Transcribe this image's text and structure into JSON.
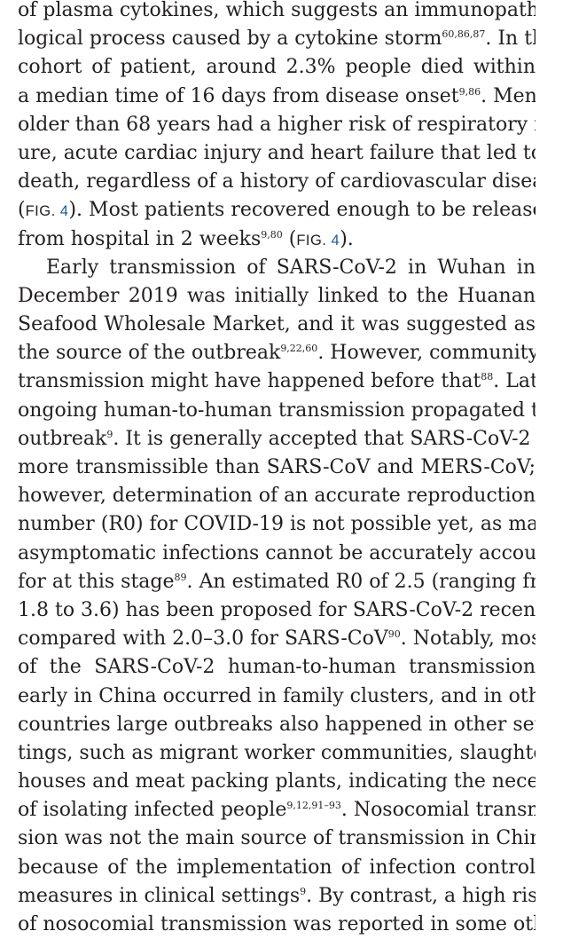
{
  "lines": [
    {
      "segments": [
        {
          "t": "text",
          "v": "of plasma cytokines, which suggests an immunopatho-"
        }
      ]
    },
    {
      "segments": [
        {
          "t": "text",
          "v": "logical process caused by a cytokine storm"
        },
        {
          "t": "sup",
          "v": "60,86,87"
        },
        {
          "t": "text",
          "v": ". In this"
        }
      ]
    },
    {
      "segments": [
        {
          "t": "text",
          "v": "cohort of patient, around 2.3% people died within"
        }
      ]
    },
    {
      "segments": [
        {
          "t": "text",
          "v": "a median time of 16 days from disease onset"
        },
        {
          "t": "sup",
          "v": "9,86"
        },
        {
          "t": "text",
          "v": ". Men"
        }
      ]
    },
    {
      "segments": [
        {
          "t": "text",
          "v": "older than 68 years had a higher risk of respiratory fail-"
        }
      ]
    },
    {
      "segments": [
        {
          "t": "text",
          "v": "ure, acute cardiac injury and heart failure that led to"
        }
      ]
    },
    {
      "segments": [
        {
          "t": "text",
          "v": "death, regardless of a history of cardiovascular disease"
        },
        {
          "t": "sup",
          "v": "86"
        }
      ]
    },
    {
      "segments": [
        {
          "t": "text",
          "v": "("
        },
        {
          "t": "fig",
          "v": "FIG.",
          "n": "4"
        },
        {
          "t": "text",
          "v": "). Most patients recovered enough to be released"
        }
      ]
    },
    {
      "last": true,
      "segments": [
        {
          "t": "text",
          "v": "from hospital in 2 weeks"
        },
        {
          "t": "sup",
          "v": "9,80"
        },
        {
          "t": "text",
          "v": " ("
        },
        {
          "t": "fig",
          "v": "FIG.",
          "n": "4"
        },
        {
          "t": "text",
          "v": ")."
        }
      ]
    },
    {
      "indent": true,
      "segments": [
        {
          "t": "text",
          "v": "Early transmission of SARS-CoV-2 in Wuhan in"
        }
      ]
    },
    {
      "segments": [
        {
          "t": "text",
          "v": "December 2019 was initially linked to the Huanan"
        }
      ]
    },
    {
      "segments": [
        {
          "t": "text",
          "v": "Seafood Wholesale Market, and it was suggested as"
        }
      ]
    },
    {
      "segments": [
        {
          "t": "text",
          "v": "the source of the outbreak"
        },
        {
          "t": "sup",
          "v": "9,22,60"
        },
        {
          "t": "text",
          "v": ". However, community"
        }
      ]
    },
    {
      "segments": [
        {
          "t": "text",
          "v": "transmission might have happened before that"
        },
        {
          "t": "sup",
          "v": "88"
        },
        {
          "t": "text",
          "v": ". Later,"
        }
      ]
    },
    {
      "segments": [
        {
          "t": "text",
          "v": "ongoing human-to-human transmission propagated the"
        }
      ]
    },
    {
      "segments": [
        {
          "t": "text",
          "v": "outbreak"
        },
        {
          "t": "sup",
          "v": "9"
        },
        {
          "t": "text",
          "v": ". It is generally accepted that SARS-CoV-2 is"
        }
      ]
    },
    {
      "segments": [
        {
          "t": "text",
          "v": "more transmissible than SARS-CoV and MERS-CoV;"
        }
      ]
    },
    {
      "segments": [
        {
          "t": "text",
          "v": "however, determination of an accurate reproduction"
        }
      ]
    },
    {
      "segments": [
        {
          "t": "text",
          "v": "number (R0) for COVID-19 is not possible yet, as many"
        }
      ]
    },
    {
      "segments": [
        {
          "t": "text",
          "v": "asymptomatic infections cannot be accurately accounted"
        }
      ]
    },
    {
      "segments": [
        {
          "t": "text",
          "v": "for at this stage"
        },
        {
          "t": "sup",
          "v": "89"
        },
        {
          "t": "text",
          "v": ". An estimated R0 of 2.5 (ranging from"
        }
      ]
    },
    {
      "segments": [
        {
          "t": "text",
          "v": "1.8 to 3.6) has been proposed for SARS-CoV-2 recently,"
        }
      ]
    },
    {
      "segments": [
        {
          "t": "text",
          "v": "compared with 2.0–3.0 for SARS-CoV"
        },
        {
          "t": "sup",
          "v": "90"
        },
        {
          "t": "text",
          "v": ". Notably, most"
        }
      ]
    },
    {
      "segments": [
        {
          "t": "text",
          "v": "of the SARS-CoV-2 human-to-human transmission"
        }
      ]
    },
    {
      "segments": [
        {
          "t": "text",
          "v": "early in China occurred in family clusters, and in other"
        }
      ]
    },
    {
      "segments": [
        {
          "t": "text",
          "v": "countries large outbreaks also happened in other set-"
        }
      ]
    },
    {
      "segments": [
        {
          "t": "text",
          "v": "tings, such as migrant worker communities, slaughter-"
        }
      ]
    },
    {
      "segments": [
        {
          "t": "text",
          "v": "houses and meat packing plants, indicating the necessity"
        }
      ]
    },
    {
      "segments": [
        {
          "t": "text",
          "v": "of isolating infected people"
        },
        {
          "t": "sup",
          "v": "9,12,91–93"
        },
        {
          "t": "text",
          "v": ". Nosocomial transmis-"
        }
      ]
    },
    {
      "segments": [
        {
          "t": "text",
          "v": "sion was not the main source of transmission in China"
        }
      ]
    },
    {
      "segments": [
        {
          "t": "text",
          "v": "because of the implementation of infection control"
        }
      ]
    },
    {
      "segments": [
        {
          "t": "text",
          "v": "measures in clinical settings"
        },
        {
          "t": "sup",
          "v": "9"
        },
        {
          "t": "text",
          "v": ". By contrast, a high risk"
        }
      ]
    },
    {
      "segments": [
        {
          "t": "text",
          "v": "of nosocomial transmission was reported in some other"
        }
      ]
    }
  ]
}
